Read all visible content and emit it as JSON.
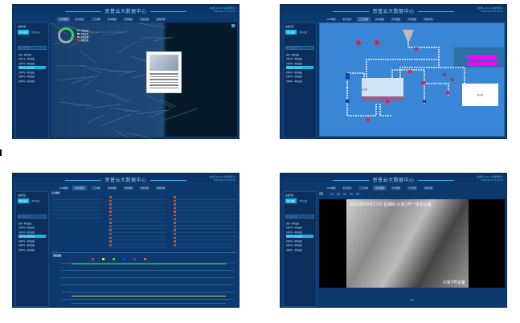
{
  "app_title": "思普云大数据中心",
  "user_info": "欢迎您 admin [系统管理员]",
  "datetime": "2018-09-27 21:41:43",
  "nav_tabs": [
    "GIS地图",
    "实时监控",
    "工艺流程",
    "实时视频",
    "历史数据",
    "历史报警",
    "远程控制"
  ],
  "sidebar": {
    "title": "设备列表",
    "tabs": [
      "用户设备",
      "所有设备"
    ],
    "search_placeholder": "输入设备名称",
    "group": "思普一体化设备",
    "items": [
      "兴家1号一体化设备",
      "兴家2号一体化设备",
      "兴家3号一体化设备",
      "兴家4号一体化设备",
      "兴家5号一体化设备",
      "兴家6号一体化设备"
    ]
  },
  "panels": [
    {
      "active_tab": 0,
      "legend": [
        "在线设备",
        "离线设备",
        "报警设备",
        "故障设备"
      ],
      "legend_colors": [
        "#3cd24a",
        "#cccccc",
        "#e8a030",
        "#e03030"
      ]
    },
    {
      "active_tab": 2,
      "tank_label": "反应池",
      "side_tank_label": "清水池"
    },
    {
      "active_tab": 1,
      "section_title": "实时数据",
      "chart_title": "历史曲线",
      "series_colors": [
        "#e03030",
        "#e8e030",
        "#3cd24a",
        "#2040e0",
        "#a020a0",
        "#e06030"
      ]
    },
    {
      "active_tab": 3,
      "video_toolbar": "画面",
      "overlay_top": "2018年09月27日 星期四 兴家3号一体化设备",
      "overlay_bottom": "兴家3号设备",
      "pagination": "1/2"
    }
  ]
}
